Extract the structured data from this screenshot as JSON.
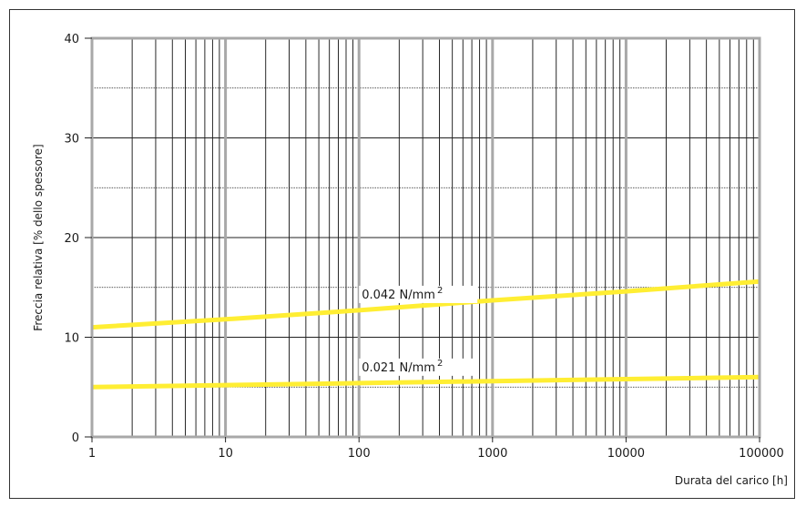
{
  "chart_data": {
    "type": "line",
    "xlabel": "Durata del carico [h]",
    "ylabel": "Freccia relativa [% dello spessore]",
    "x_scale": "log",
    "xlim": [
      1,
      100000
    ],
    "ylim": [
      0,
      40
    ],
    "x_ticks": [
      {
        "value": 1,
        "label": "1"
      },
      {
        "value": 10,
        "label": "10"
      },
      {
        "value": 100,
        "label": "100"
      },
      {
        "value": 1000,
        "label": "1000"
      },
      {
        "value": 10000,
        "label": "10000"
      },
      {
        "value": 100000,
        "label": "100000"
      }
    ],
    "y_ticks": [
      {
        "value": 0,
        "label": "0"
      },
      {
        "value": 10,
        "label": "10"
      },
      {
        "value": 20,
        "label": "20"
      },
      {
        "value": 30,
        "label": "30"
      },
      {
        "value": 40,
        "label": "40"
      }
    ],
    "y_minor_grid": [
      5,
      15,
      25,
      35
    ],
    "grid": true,
    "series": [
      {
        "name": "0.042 N/mm2",
        "label_main": "0.042 N/mm",
        "label_sup": "2",
        "color": "#ffee33",
        "x": [
          1,
          10,
          100,
          1000,
          10000,
          100000
        ],
        "y": [
          11.0,
          11.8,
          12.7,
          13.7,
          14.6,
          15.6
        ]
      },
      {
        "name": "0.021 N/mm2",
        "label_main": "0.021 N/mm",
        "label_sup": "2",
        "color": "#ffee33",
        "x": [
          1,
          10,
          100,
          1000,
          10000,
          100000
        ],
        "y": [
          5.0,
          5.2,
          5.4,
          5.6,
          5.8,
          6.0
        ]
      }
    ]
  }
}
